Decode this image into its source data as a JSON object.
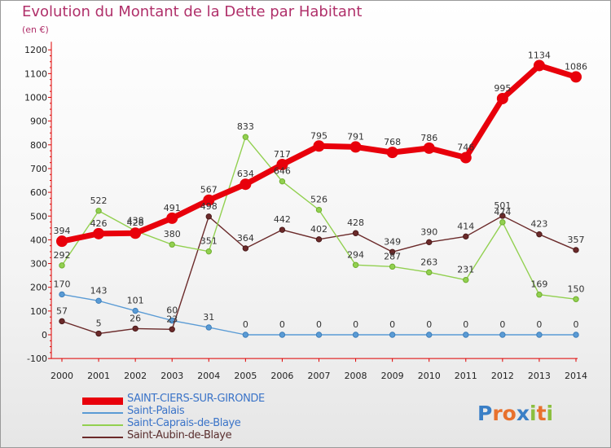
{
  "title": "Evolution du Montant de la Dette par Habitant",
  "unit": "(en €)",
  "brand": {
    "letters": [
      "P",
      "r",
      "o",
      "x",
      "i",
      "t",
      "i"
    ],
    "colors": [
      "#3a7fc6",
      "#e8712d",
      "#e8712d",
      "#3a7fc6",
      "#8cbf3f",
      "#e8712d",
      "#8cbf3f"
    ]
  },
  "chart_data": {
    "type": "line",
    "x": [
      2000,
      2001,
      2002,
      2003,
      2004,
      2005,
      2006,
      2007,
      2008,
      2009,
      2010,
      2011,
      2012,
      2013,
      2014
    ],
    "ylim": [
      -100,
      1200
    ],
    "yticks": [
      -100,
      0,
      100,
      200,
      300,
      400,
      500,
      600,
      700,
      800,
      900,
      1000,
      1100,
      1200
    ],
    "grid": false,
    "legend_position": "bottom-left",
    "series": [
      {
        "name": "SAINT-CIERS-SUR-GIRONDE",
        "color": "#e8000b",
        "values": [
          394,
          426,
          428,
          491,
          567,
          634,
          717,
          795,
          791,
          768,
          786,
          746,
          995,
          1134,
          1086
        ]
      },
      {
        "name": "Saint-Palais",
        "color": "#5a9bd5",
        "values": [
          170,
          143,
          101,
          60,
          31,
          0,
          0,
          0,
          0,
          0,
          0,
          0,
          0,
          0,
          0
        ]
      },
      {
        "name": "Saint-Caprais-de-Blaye",
        "color": "#92d050",
        "values": [
          292,
          522,
          438,
          380,
          351,
          833,
          646,
          526,
          294,
          287,
          263,
          231,
          474,
          169,
          150
        ]
      },
      {
        "name": "Saint-Aubin-de-Blaye",
        "color": "#6b2a2a",
        "values": [
          57,
          5,
          26,
          23,
          498,
          364,
          442,
          402,
          428,
          349,
          390,
          414,
          501,
          423,
          357
        ]
      }
    ]
  }
}
